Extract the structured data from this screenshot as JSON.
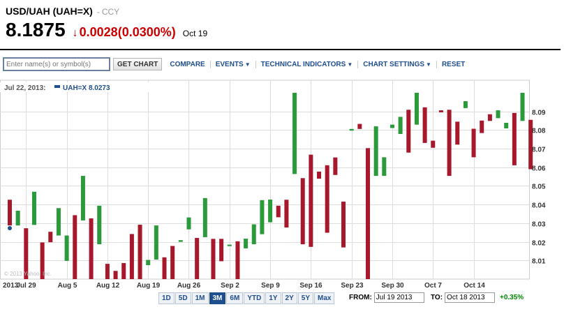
{
  "header": {
    "title": "USD/UAH (UAH=X)",
    "ccy": "CCY",
    "price": "8.1875",
    "arrow": "↓",
    "change": "0.0028",
    "change_pct": "(0.0300%)",
    "date": "Oct 19"
  },
  "toolbar": {
    "search_placeholder": "Enter name(s) or symbol(s)",
    "get_chart": "GET CHART",
    "compare": "COMPARE",
    "events": "EVENTS",
    "technical_indicators": "TECHNICAL INDICATORS",
    "chart_settings": "CHART SETTINGS",
    "reset": "RESET"
  },
  "legend": {
    "date": "Jul 22, 2013:",
    "series_label": "UAH=X 8.0273"
  },
  "watermark": "© 2013 Yahoo! Inc.",
  "ranges": [
    "1D",
    "5D",
    "1M",
    "3M",
    "6M",
    "YTD",
    "1Y",
    "2Y",
    "5Y",
    "Max"
  ],
  "active_range": "3M",
  "dates": {
    "from_label": "FROM:",
    "from": "Jul 19 2013",
    "to_label": "TO:",
    "to": "Oct 18 2013"
  },
  "change_summary": "+0.35%",
  "colors": {
    "up": "#2a9a3a",
    "down": "#a8182c",
    "link": "#1f4e8c",
    "grid": "#dddddd"
  },
  "chart_data": {
    "type": "candlestick",
    "ylim": [
      8.0,
      8.1
    ],
    "y_ticks": [
      "8.01",
      "8.02",
      "8.03",
      "8.04",
      "8.05",
      "8.06",
      "8.07",
      "8.08",
      "8.09"
    ],
    "x_ticks": [
      "2013",
      "Jul 29",
      "Aug 5",
      "Aug 12",
      "Aug 19",
      "Aug 26",
      "Sep 2",
      "Sep 9",
      "Sep 16",
      "Sep 23",
      "Sep 30",
      "Oct 7",
      "Oct 14"
    ],
    "grid": true,
    "candles": [
      {
        "dir": "down",
        "top": 8.0426,
        "bottom": 8.0288
      },
      {
        "dir": "up",
        "top": 8.0367,
        "bottom": 8.0288
      },
      {
        "dir": "down",
        "top": 8.0273,
        "bottom": 8.0
      },
      {
        "dir": "up",
        "top": 8.0469,
        "bottom": 8.0291
      },
      {
        "dir": "down",
        "top": 8.0197,
        "bottom": 8.0
      },
      {
        "dir": "down",
        "top": 8.0254,
        "bottom": 8.0198
      },
      {
        "dir": "up",
        "top": 8.0381,
        "bottom": 8.0234
      },
      {
        "dir": "up",
        "top": 8.0234,
        "bottom": 8.0098
      },
      {
        "dir": "down",
        "top": 8.0343,
        "bottom": 8.0
      },
      {
        "dir": "up",
        "top": 8.0554,
        "bottom": 8.0315
      },
      {
        "dir": "down",
        "top": 8.0326,
        "bottom": 8.0
      },
      {
        "dir": "up",
        "top": 8.0394,
        "bottom": 8.0187
      },
      {
        "dir": "down",
        "top": 8.0082,
        "bottom": 8.0
      },
      {
        "dir": "down",
        "top": 8.0044,
        "bottom": 8.0
      },
      {
        "dir": "down",
        "top": 8.0086,
        "bottom": 8.0
      },
      {
        "dir": "down",
        "top": 8.0242,
        "bottom": 8.0
      },
      {
        "dir": "down",
        "top": 8.0292,
        "bottom": 8.0
      },
      {
        "dir": "up",
        "top": 8.0103,
        "bottom": 8.0075
      },
      {
        "dir": "up",
        "top": 8.0288,
        "bottom": 8.0105
      },
      {
        "dir": "down",
        "top": 8.0117,
        "bottom": 8.0
      },
      {
        "dir": "down",
        "top": 8.0178,
        "bottom": 8.0
      },
      {
        "dir": "up",
        "top": 8.0209,
        "bottom": 8.02
      },
      {
        "dir": "up",
        "top": 8.0331,
        "bottom": 8.0267
      },
      {
        "dir": "down",
        "top": 8.0221,
        "bottom": 8.0
      },
      {
        "dir": "up",
        "top": 8.0435,
        "bottom": 8.0225
      },
      {
        "dir": "down",
        "top": 8.0216,
        "bottom": 8.0
      },
      {
        "dir": "down",
        "top": 8.0216,
        "bottom": 8.0096
      },
      {
        "dir": "up",
        "top": 8.0185,
        "bottom": 8.0177
      },
      {
        "dir": "down",
        "top": 8.0203,
        "bottom": 8.0
      },
      {
        "dir": "up",
        "top": 8.0217,
        "bottom": 8.0165
      },
      {
        "dir": "up",
        "top": 8.0294,
        "bottom": 8.0187
      },
      {
        "dir": "up",
        "top": 8.0424,
        "bottom": 8.0241
      },
      {
        "dir": "up",
        "top": 8.0427,
        "bottom": 8.0305
      },
      {
        "dir": "down",
        "top": 8.0394,
        "bottom": 8.0332
      },
      {
        "dir": "down",
        "top": 8.0426,
        "bottom": 8.0277
      },
      {
        "dir": "up",
        "top": 8.1,
        "bottom": 8.0564
      },
      {
        "dir": "down",
        "top": 8.0542,
        "bottom": 8.0187
      },
      {
        "dir": "down",
        "top": 8.0668,
        "bottom": 8.0173
      },
      {
        "dir": "down",
        "top": 8.0577,
        "bottom": 8.0539
      },
      {
        "dir": "down",
        "top": 8.0611,
        "bottom": 8.0249
      },
      {
        "dir": "down",
        "top": 8.0653,
        "bottom": 8.0559
      },
      {
        "dir": "down",
        "top": 8.0416,
        "bottom": 8.017
      },
      {
        "dir": "up",
        "top": 8.0806,
        "bottom": 8.0797
      },
      {
        "dir": "down",
        "top": 8.0833,
        "bottom": 8.0806
      },
      {
        "dir": "down",
        "top": 8.0703,
        "bottom": 8.0
      },
      {
        "dir": "up",
        "top": 8.082,
        "bottom": 8.0554
      },
      {
        "dir": "up",
        "top": 8.0654,
        "bottom": 8.0554
      },
      {
        "dir": "up",
        "top": 8.0829,
        "bottom": 8.0811
      },
      {
        "dir": "up",
        "top": 8.0871,
        "bottom": 8.0779
      },
      {
        "dir": "down",
        "top": 8.0909,
        "bottom": 8.0679
      },
      {
        "dir": "up",
        "top": 8.1,
        "bottom": 8.0829
      },
      {
        "dir": "down",
        "top": 8.0922,
        "bottom": 8.0731
      },
      {
        "dir": "down",
        "top": 8.0743,
        "bottom": 8.0705
      },
      {
        "dir": "down",
        "top": 8.0906,
        "bottom": 8.0895
      },
      {
        "dir": "down",
        "top": 8.0909,
        "bottom": 8.0554
      },
      {
        "dir": "down",
        "top": 8.0845,
        "bottom": 8.0722
      },
      {
        "dir": "up",
        "top": 8.0955,
        "bottom": 8.0918
      },
      {
        "dir": "down",
        "top": 8.0807,
        "bottom": 8.0654
      },
      {
        "dir": "down",
        "top": 8.0851,
        "bottom": 8.0784
      },
      {
        "dir": "down",
        "top": 8.0885,
        "bottom": 8.0849
      },
      {
        "dir": "up",
        "top": 8.0906,
        "bottom": 8.0864
      },
      {
        "dir": "up",
        "top": 8.0839,
        "bottom": 8.0809
      },
      {
        "dir": "down",
        "top": 8.0892,
        "bottom": 8.0611
      },
      {
        "dir": "up",
        "top": 8.1,
        "bottom": 8.0849
      },
      {
        "dir": "down",
        "top": 8.0855,
        "bottom": 8.059
      }
    ]
  }
}
